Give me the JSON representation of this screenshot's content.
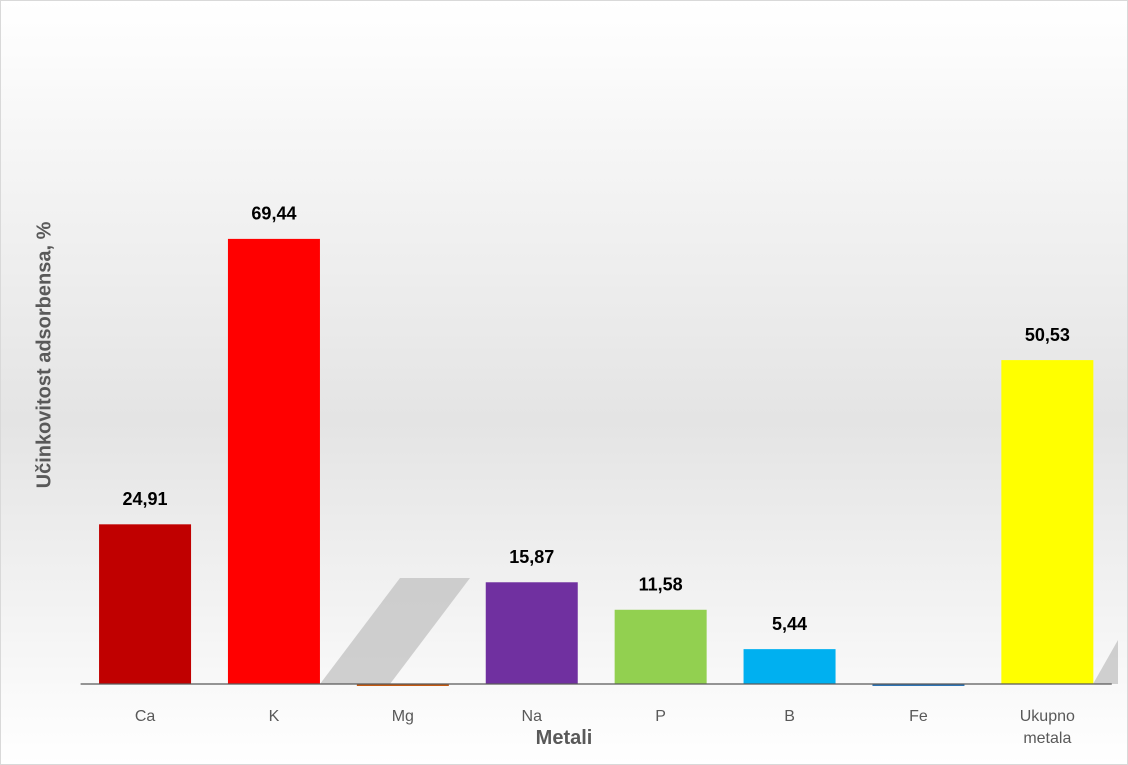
{
  "chart_data": {
    "type": "bar",
    "x_label": "Metali",
    "y_label": "Učinkovitost adsorbensa, %",
    "categories": [
      "Ca",
      "K",
      "Mg",
      "Na",
      "P",
      "B",
      "Fe",
      "Ukupno metala"
    ],
    "values": [
      24.91,
      69.44,
      -0.3,
      15.87,
      11.58,
      5.44,
      -0.3,
      50.53
    ],
    "value_labels": [
      "24,91",
      "69,44",
      null,
      "15,87",
      "11,58",
      "5,44",
      null,
      "50,53"
    ],
    "colors": [
      "#c00000",
      "#ff0000",
      "#c55a11",
      "#7030a0",
      "#92d050",
      "#00b0f0",
      "#2e75b6",
      "#ffff00"
    ],
    "ylim": [
      0,
      70
    ]
  }
}
